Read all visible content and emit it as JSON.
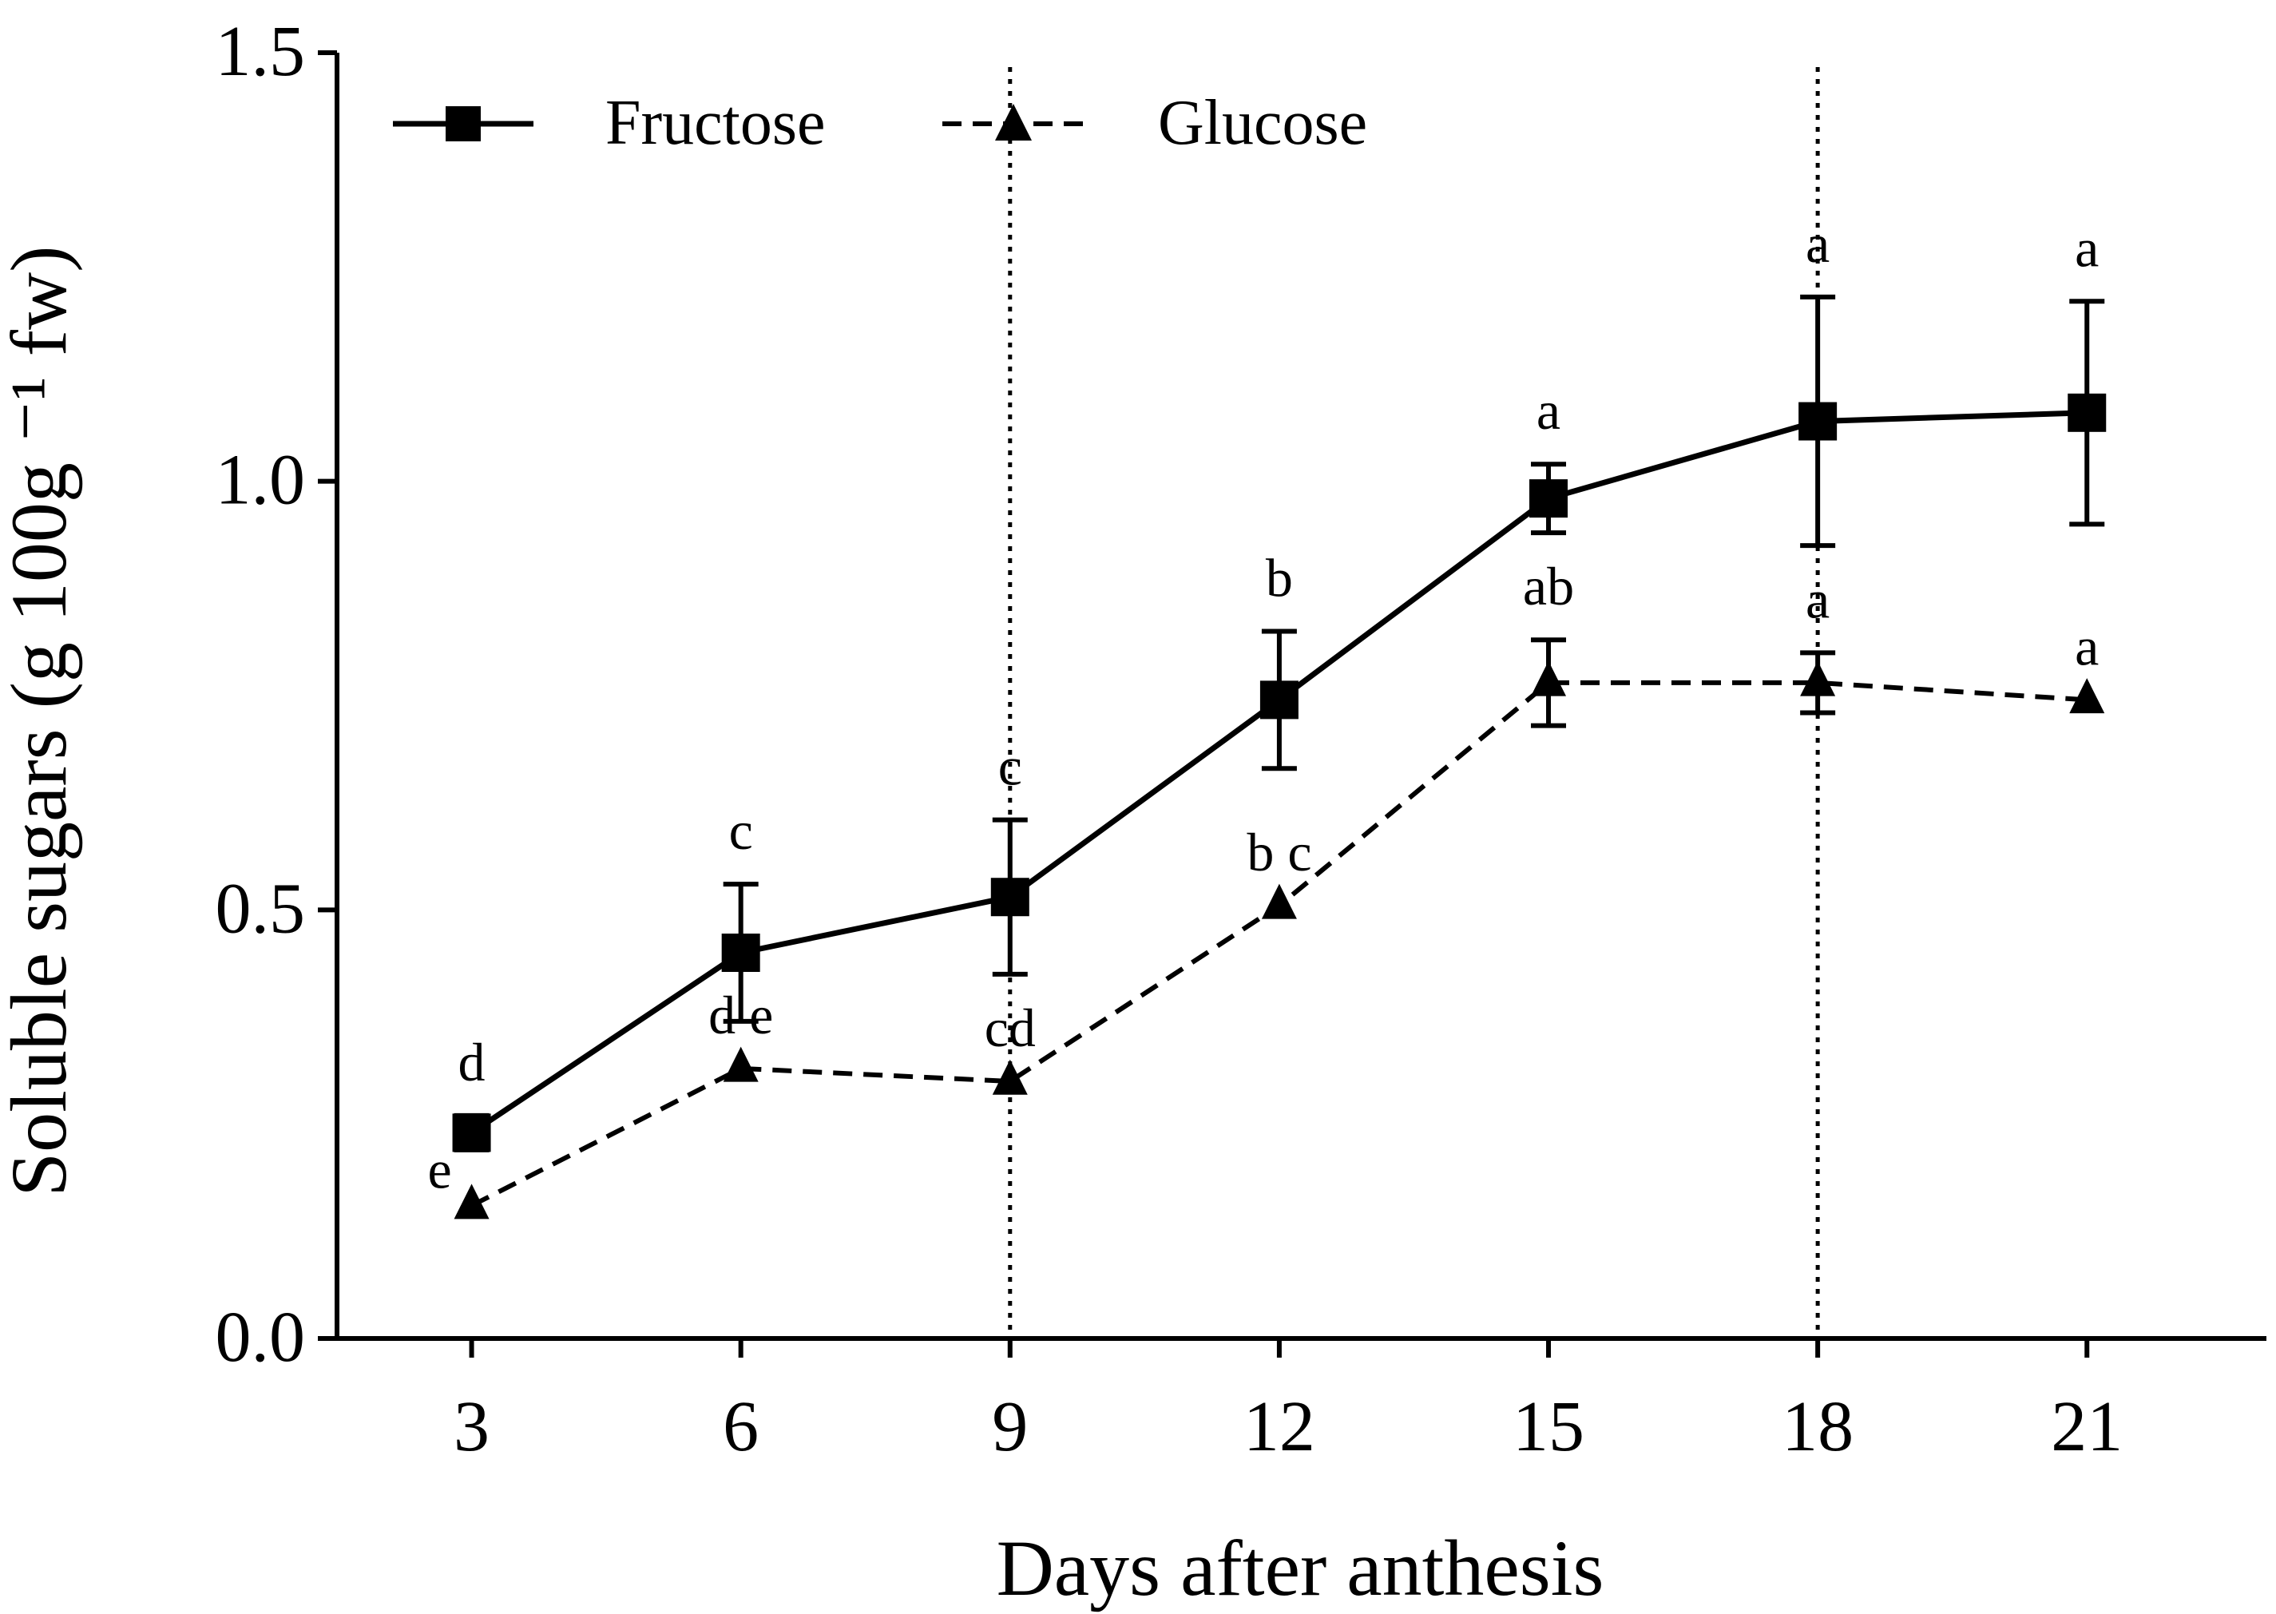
{
  "chart_data": {
    "type": "line",
    "title": "",
    "xlabel": "Days after anthesis",
    "ylabel": "Soluble sugars (g 100g ⁻¹ fw)",
    "x": [
      3,
      6,
      9,
      12,
      15,
      18,
      21
    ],
    "xlim": [
      1.5,
      23
    ],
    "ylim": [
      0,
      1.5
    ],
    "x_ticks": [
      3,
      6,
      9,
      12,
      15,
      18,
      21
    ],
    "y_ticks": [
      0,
      0.5,
      1.0,
      1.5
    ],
    "y_tick_labels": [
      "0.0",
      "0.5",
      "1.0",
      "1.5"
    ],
    "reference_lines_x": [
      9,
      18
    ],
    "grid": false,
    "legend_position": "top-left",
    "series": [
      {
        "name": "Fructose",
        "marker": "square",
        "line_style": "solid",
        "values": [
          0.24,
          0.45,
          0.515,
          0.745,
          0.98,
          1.07,
          1.08
        ],
        "errors": [
          0.02,
          0.08,
          0.09,
          0.08,
          0.04,
          0.145,
          0.13
        ],
        "letters": [
          "d",
          "c",
          "c",
          "b",
          "a",
          "a",
          "a"
        ]
      },
      {
        "name": "Glucose",
        "marker": "triangle",
        "line_style": "dashed",
        "values": [
          0.155,
          0.315,
          0.3,
          0.505,
          0.765,
          0.765,
          0.745
        ],
        "errors": [
          0,
          0,
          0,
          0,
          0.05,
          0.035,
          0
        ],
        "letters": [
          "e",
          "d e",
          "cd",
          "b c",
          "ab",
          "a",
          "a"
        ]
      }
    ]
  }
}
